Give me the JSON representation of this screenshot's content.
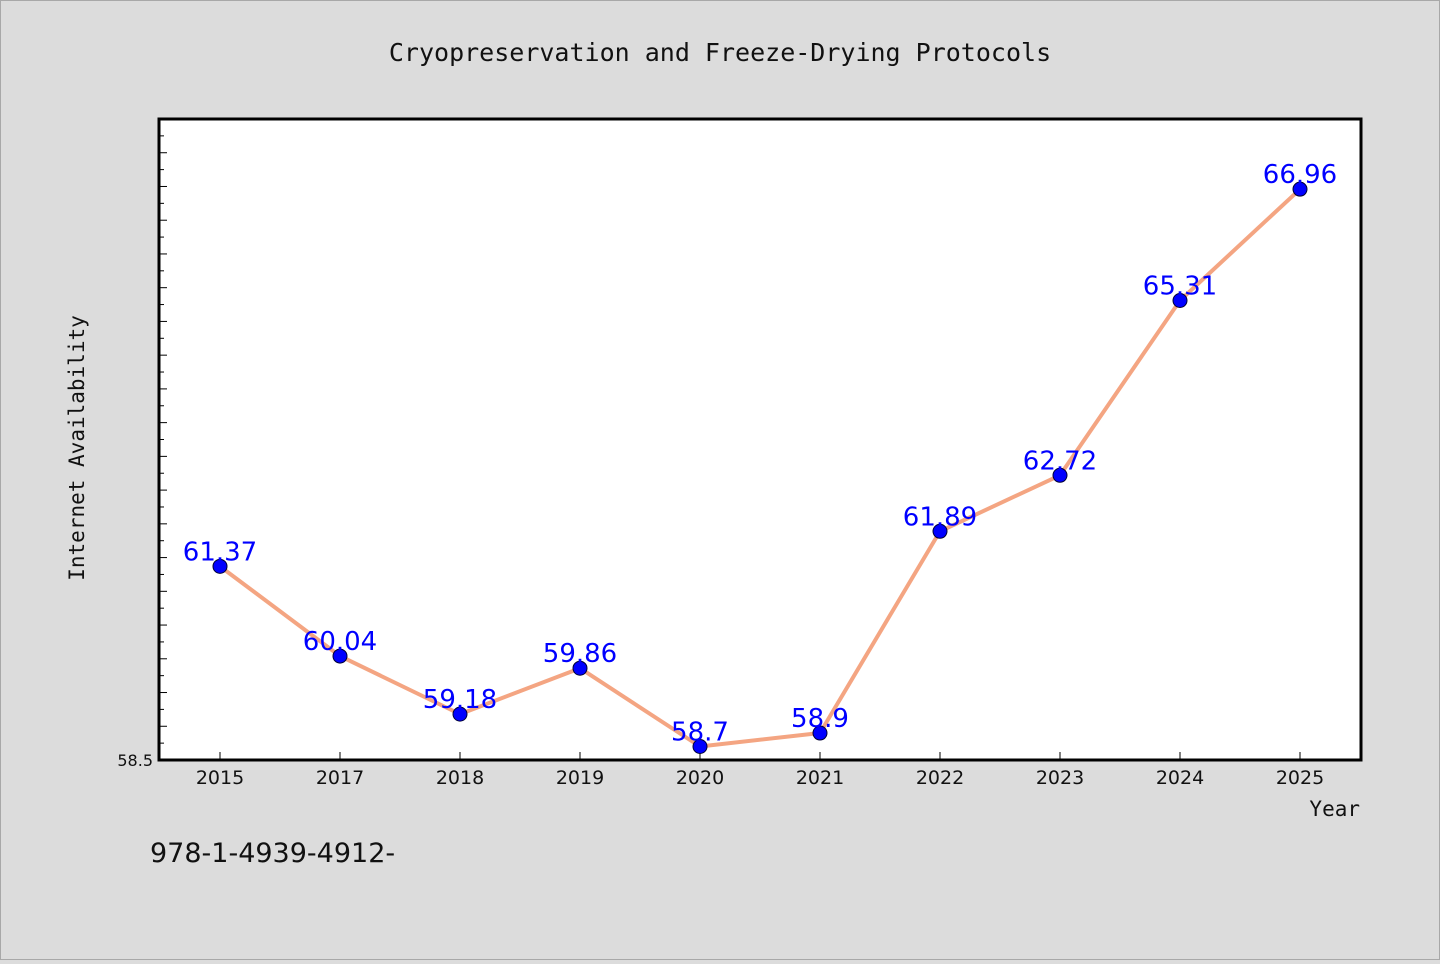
{
  "chart_data": {
    "type": "line",
    "title": "Cryopreservation and Freeze-Drying Protocols",
    "xlabel": "Year",
    "ylabel": "Internet Availability",
    "categories": [
      "2015",
      "2017",
      "2018",
      "2019",
      "2020",
      "2021",
      "2022",
      "2023",
      "2024",
      "2025"
    ],
    "series": [
      {
        "values": [
          61.37,
          60.04,
          59.18,
          59.86,
          58.7,
          58.9,
          61.89,
          62.72,
          65.31,
          66.96
        ]
      }
    ],
    "data_labels": [
      "61.37",
      "60.04",
      "59.18",
      "59.86",
      "58.7",
      "58.9",
      "61.89",
      "62.72",
      "65.31",
      "66.96"
    ],
    "ylim": [
      58.5,
      68.0
    ],
    "ytick_labels": [
      "58.5"
    ],
    "grid": false,
    "line_color": "#f4a582",
    "marker_color": "#0000ff",
    "label_color": "#0000ff"
  },
  "footer_text": "978-1-4939-4912-"
}
